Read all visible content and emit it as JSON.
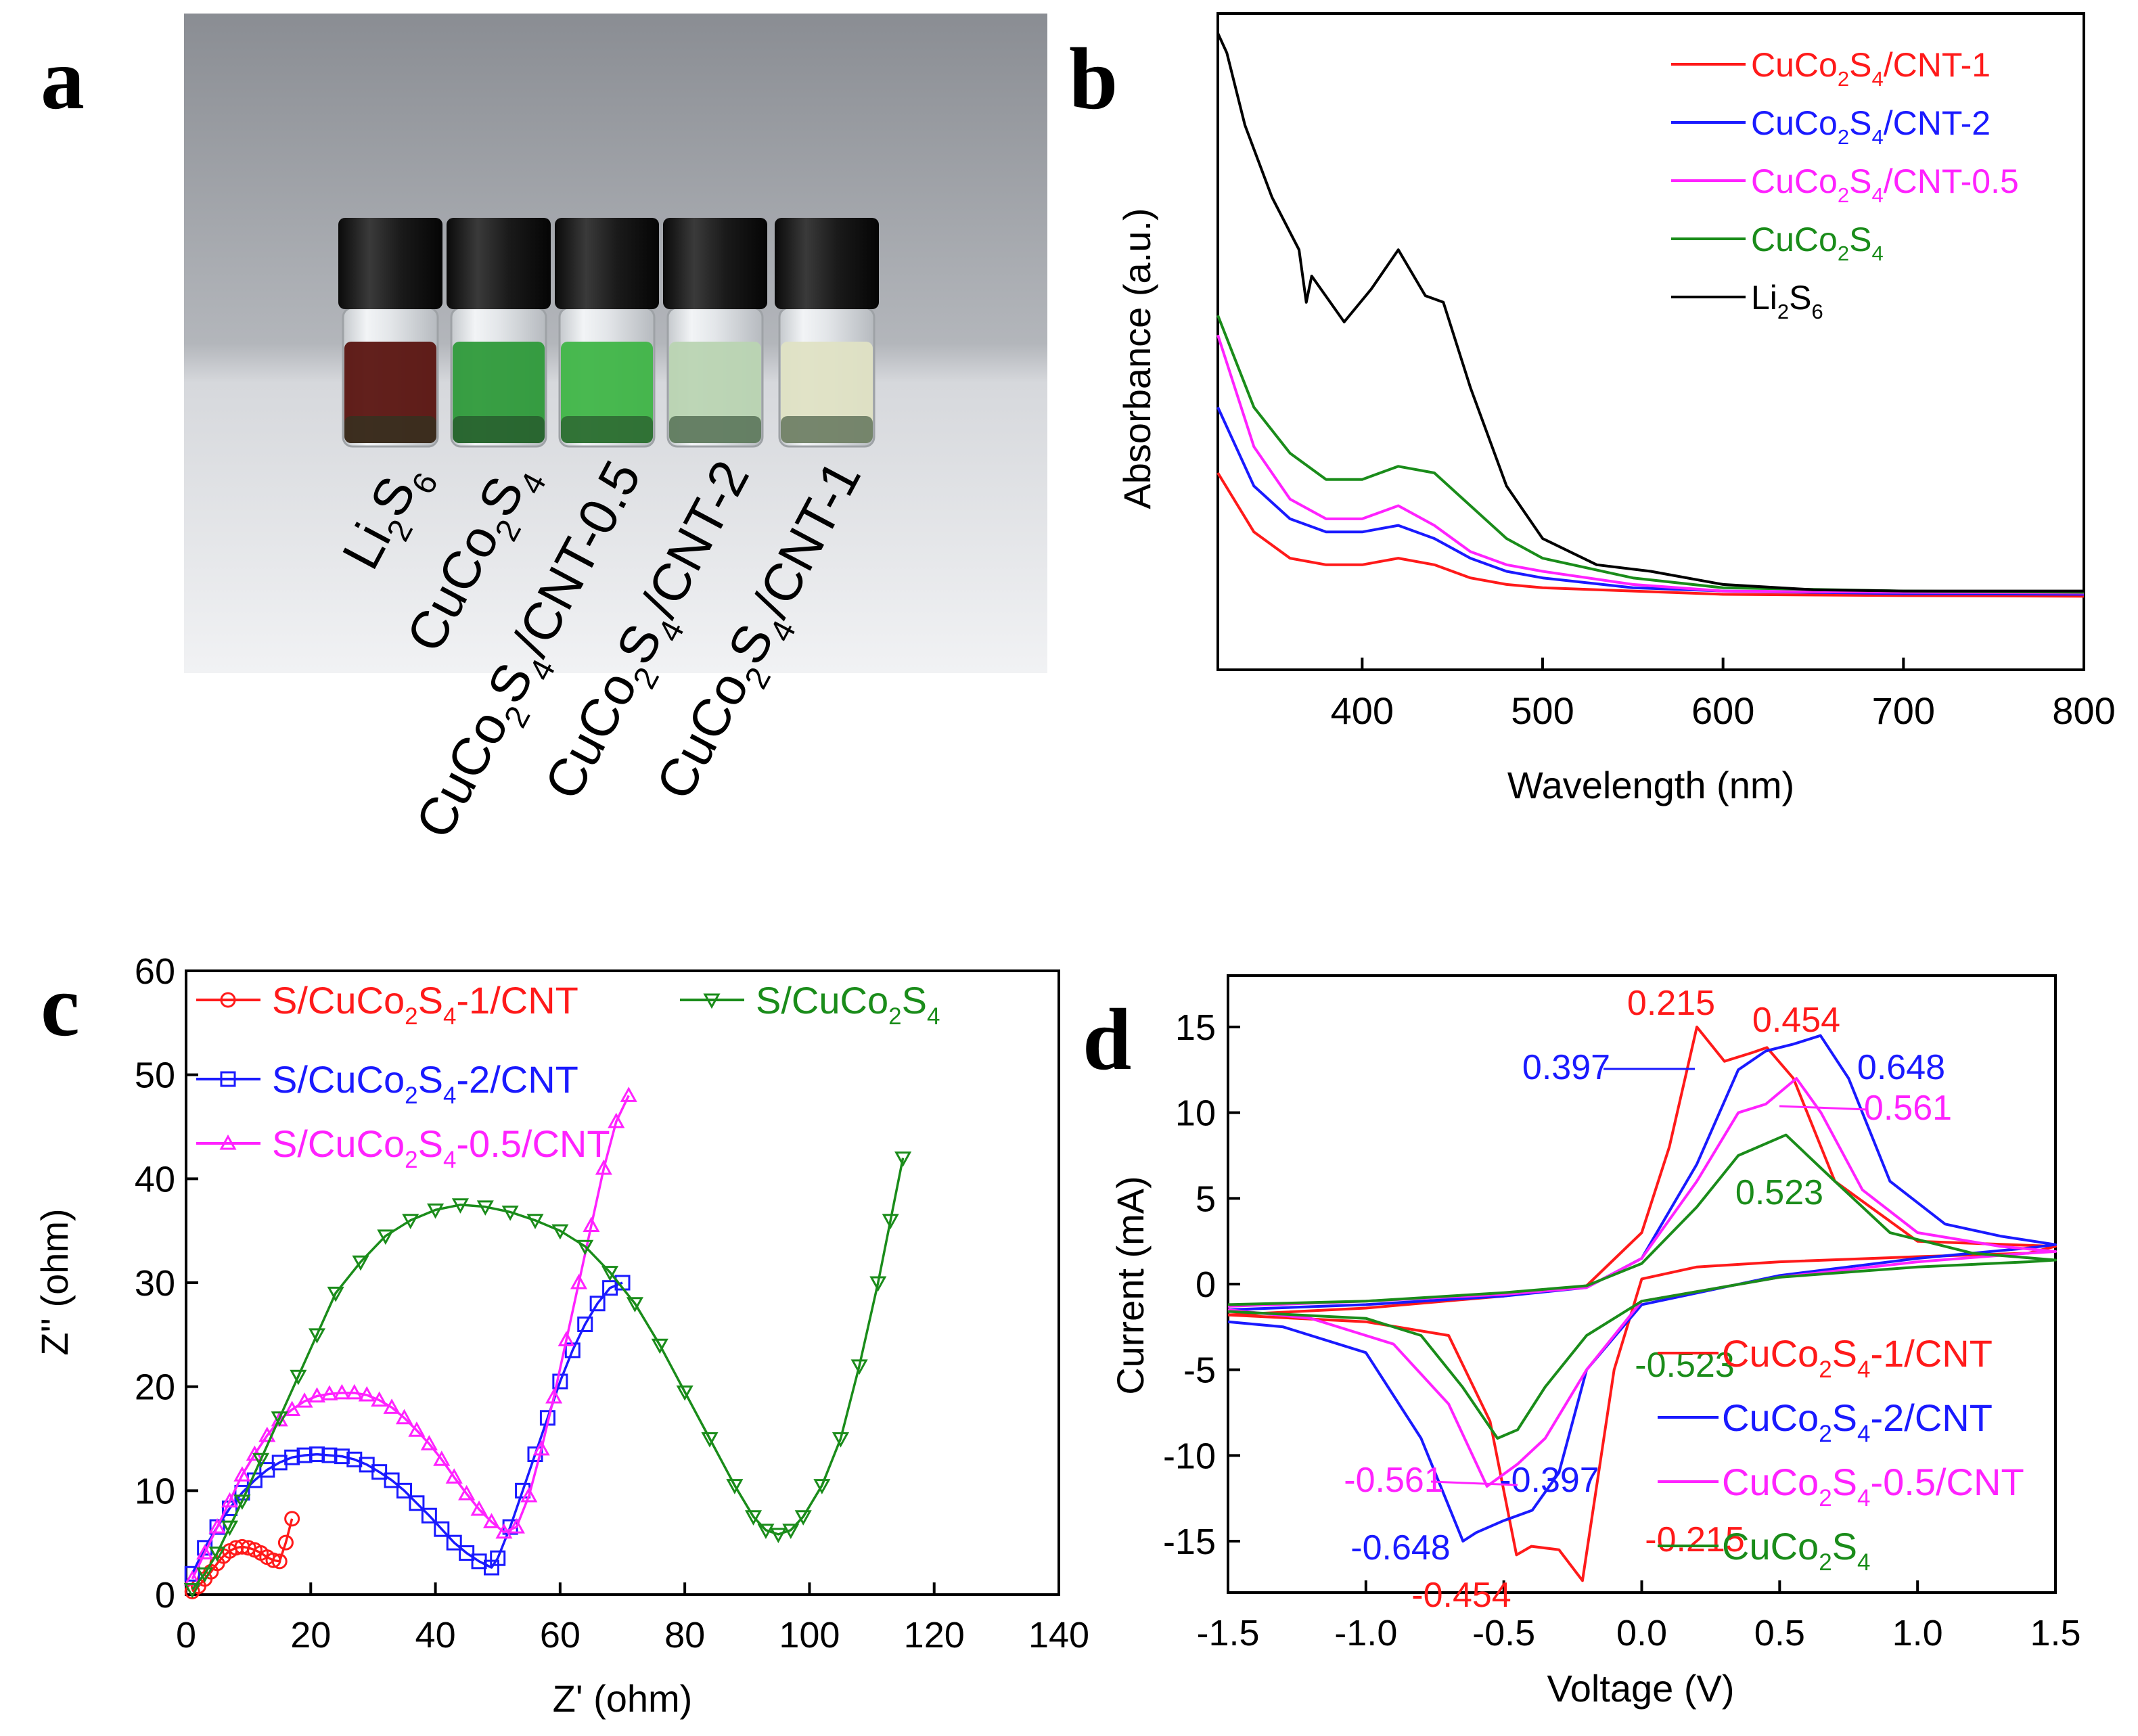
{
  "panels": {
    "a": {
      "letter": "a"
    },
    "b": {
      "letter": "b"
    },
    "c": {
      "letter": "c"
    },
    "d": {
      "letter": "d"
    }
  },
  "photo": {
    "vials": [
      {
        "label": "Li2S6",
        "color": "#5a1410"
      },
      {
        "label": "CuCo2S4",
        "color": "#2e9a3a"
      },
      {
        "label": "CuCo2S4/CNT-0.5",
        "color": "#3fb547"
      },
      {
        "label": "CuCo2S4/CNT-2",
        "color": "#b9d4b2"
      },
      {
        "label": "CuCo2S4/CNT-1",
        "color": "#dfe2c4"
      }
    ]
  },
  "colors": {
    "red": "#ff1a1a",
    "blue": "#1a1aff",
    "magenta": "#ff22ff",
    "green": "#1a8c1a",
    "black": "#000000"
  },
  "chart_data": [
    {
      "panel": "b",
      "type": "line",
      "xlabel": "Wavelength (nm)",
      "ylabel": "Absorbance (a.u.)",
      "xlim": [
        320,
        800
      ],
      "ylim": [
        0,
        100
      ],
      "xticks": [
        400,
        500,
        600,
        700,
        800
      ],
      "legend_position": "top-right",
      "series": [
        {
          "name": "CuCo2S4/CNT-1",
          "color": "#ff1a1a",
          "x": [
            320,
            340,
            360,
            380,
            400,
            420,
            440,
            460,
            480,
            500,
            550,
            600,
            700,
            800
          ],
          "y": [
            30,
            21,
            17,
            16,
            16,
            17,
            16,
            14,
            13,
            12.5,
            12,
            11.5,
            11.3,
            11.2
          ]
        },
        {
          "name": "CuCo2S4/CNT-2",
          "color": "#1a1aff",
          "x": [
            320,
            340,
            360,
            380,
            400,
            420,
            440,
            460,
            480,
            500,
            550,
            600,
            700,
            800
          ],
          "y": [
            40,
            28,
            23,
            21,
            21,
            22,
            20,
            17,
            15,
            14,
            12.5,
            12,
            11.6,
            11.5
          ]
        },
        {
          "name": "CuCo2S4/CNT-0.5",
          "color": "#ff22ff",
          "x": [
            320,
            340,
            360,
            380,
            400,
            420,
            440,
            460,
            480,
            500,
            550,
            600,
            700,
            800
          ],
          "y": [
            51,
            34,
            26,
            23,
            23,
            25,
            22,
            18,
            16,
            15,
            13,
            12,
            11.8,
            11.7
          ]
        },
        {
          "name": "CuCo2S4",
          "color": "#1a8c1a",
          "x": [
            320,
            340,
            360,
            380,
            400,
            420,
            440,
            460,
            480,
            500,
            550,
            600,
            700,
            800
          ],
          "y": [
            54,
            40,
            33,
            29,
            29,
            31,
            30,
            25,
            20,
            17,
            14,
            12.5,
            12,
            11.8
          ]
        },
        {
          "name": "Li2S6",
          "color": "#000000",
          "x": [
            320,
            325,
            335,
            350,
            365,
            369,
            372,
            390,
            405,
            420,
            435,
            445,
            460,
            480,
            500,
            530,
            560,
            600,
            650,
            700,
            800
          ],
          "y": [
            97,
            94,
            83,
            72,
            64,
            56,
            60,
            53,
            58,
            64,
            57,
            56,
            43,
            28,
            20,
            16,
            15,
            13,
            12.2,
            12,
            12
          ]
        }
      ]
    },
    {
      "panel": "c",
      "type": "scatter",
      "xlabel": "Z' (ohm)",
      "ylabel": "Z'' (ohm)",
      "xlim": [
        0,
        140
      ],
      "ylim": [
        0,
        60
      ],
      "xticks": [
        0,
        20,
        40,
        60,
        80,
        100,
        120,
        140
      ],
      "yticks": [
        0,
        10,
        20,
        30,
        40,
        50,
        60
      ],
      "legend_position": "top",
      "series": [
        {
          "name": "S/CuCo2S4-1/CNT",
          "color": "#ff1a1a",
          "marker": "circle",
          "x": [
            1,
            2,
            3,
            4,
            5,
            6,
            7,
            8,
            9,
            10,
            11,
            12,
            13,
            14,
            15,
            16,
            17
          ],
          "y": [
            0.3,
            0.8,
            1.5,
            2.2,
            3,
            3.7,
            4.2,
            4.5,
            4.6,
            4.5,
            4.3,
            4,
            3.6,
            3.3,
            3.2,
            5,
            7.3
          ]
        },
        {
          "name": "S/CuCo2S4-2/CNT",
          "color": "#1a1aff",
          "marker": "square",
          "x": [
            1,
            3,
            5,
            7,
            9,
            11,
            13,
            15,
            17,
            19,
            21,
            23,
            25,
            27,
            29,
            31,
            33,
            35,
            37,
            39,
            41,
            43,
            45,
            47,
            49,
            50,
            52,
            54,
            56,
            58,
            60,
            62,
            64,
            66,
            68,
            70
          ],
          "y": [
            2,
            4.5,
            6.5,
            8.3,
            9.8,
            11,
            12,
            12.7,
            13.2,
            13.4,
            13.5,
            13.4,
            13.3,
            13,
            12.5,
            11.8,
            11,
            10,
            8.8,
            7.6,
            6.3,
            5,
            4,
            3.2,
            2.6,
            3.5,
            6.5,
            10,
            13.5,
            17,
            20.5,
            23.5,
            26,
            28,
            29.5,
            30
          ]
        },
        {
          "name": "S/CuCo2S4-0.5/CNT",
          "color": "#ff22ff",
          "marker": "triangle-up",
          "x": [
            1,
            3,
            5,
            7,
            9,
            11,
            13,
            15,
            17,
            19,
            21,
            23,
            25,
            27,
            29,
            31,
            33,
            35,
            37,
            39,
            41,
            43,
            45,
            47,
            49,
            51,
            53,
            55,
            57,
            59,
            61,
            63,
            65,
            67,
            69,
            71
          ],
          "y": [
            1.5,
            4,
            6.5,
            9,
            11.5,
            13.5,
            15.3,
            16.8,
            17.8,
            18.6,
            19.1,
            19.3,
            19.4,
            19.4,
            19.2,
            18.7,
            18,
            17,
            15.8,
            14.5,
            13,
            11.3,
            9.7,
            8.2,
            7,
            6,
            6.5,
            9.5,
            14,
            19,
            24.5,
            30,
            35.5,
            41,
            45.5,
            48
          ]
        },
        {
          "name": "S/CuCo2S4",
          "color": "#1a8c1a",
          "marker": "triangle-down",
          "x": [
            1,
            3,
            5,
            7,
            9,
            12,
            15,
            18,
            21,
            24,
            28,
            32,
            36,
            40,
            44,
            48,
            52,
            56,
            60,
            64,
            68,
            72,
            76,
            80,
            84,
            88,
            91,
            93,
            95,
            97,
            99,
            102,
            105,
            108,
            111,
            113,
            115
          ],
          "y": [
            0.5,
            2,
            4,
            6.5,
            9,
            13,
            17,
            21,
            25,
            29,
            32,
            34.5,
            36,
            37,
            37.5,
            37.3,
            36.8,
            36,
            35,
            33.5,
            31,
            28,
            24,
            19.5,
            15,
            10.5,
            7.5,
            6.2,
            5.8,
            6.2,
            7.5,
            10.5,
            15,
            22,
            30,
            36,
            42
          ]
        }
      ]
    },
    {
      "panel": "d",
      "type": "line",
      "xlabel": "Voltage (V)",
      "ylabel": "Current (mA)",
      "xlim": [
        -1.5,
        1.5
      ],
      "ylim": [
        -18,
        18
      ],
      "xticks": [
        -1.5,
        -1.0,
        -0.5,
        0.0,
        0.5,
        1.0,
        1.5
      ],
      "yticks": [
        -15,
        -10,
        -5,
        0,
        5,
        10,
        15
      ],
      "legend_position": "bottom-right",
      "series": [
        {
          "name": "CuCo2S4-1/CNT",
          "color": "#ff1a1a",
          "x": [
            -1.5,
            -1.0,
            -0.5,
            -0.2,
            0,
            0.1,
            0.2,
            0.3,
            0.4,
            0.454,
            0.55,
            0.7,
            1.0,
            1.5,
            1.4,
            1.0,
            0.5,
            0.2,
            0.0,
            -0.1,
            -0.215,
            -0.3,
            -0.4,
            -0.454,
            -0.55,
            -0.7,
            -1.0,
            -1.5
          ],
          "y": [
            -1.8,
            -1.4,
            -0.7,
            -0.1,
            3,
            8,
            15,
            13,
            13.5,
            13.8,
            12,
            6,
            2.5,
            2.2,
            1.8,
            1.6,
            1.3,
            1.0,
            0.3,
            -5,
            -17.3,
            -15.5,
            -15.3,
            -15.8,
            -8,
            -3,
            -2.2,
            -1.8
          ]
        },
        {
          "name": "CuCo2S4-2/CNT",
          "color": "#1a1aff",
          "x": [
            -1.5,
            -1.0,
            -0.5,
            -0.2,
            0,
            0.2,
            0.35,
            0.45,
            0.55,
            0.648,
            0.75,
            0.9,
            1.1,
            1.3,
            1.5,
            1.4,
            1.0,
            0.5,
            0.0,
            -0.2,
            -0.3,
            -0.397,
            -0.5,
            -0.6,
            -0.648,
            -0.8,
            -1.0,
            -1.3,
            -1.5
          ],
          "y": [
            -1.5,
            -1.2,
            -0.7,
            -0.2,
            1.5,
            7,
            12.5,
            13.6,
            14,
            14.5,
            12,
            6,
            3.5,
            2.8,
            2.3,
            2.1,
            1.5,
            0.5,
            -1.2,
            -5,
            -11,
            -13.2,
            -13.8,
            -14.5,
            -15,
            -9,
            -4,
            -2.5,
            -2.2
          ]
        },
        {
          "name": "CuCo2S4-0.5/CNT",
          "color": "#ff22ff",
          "x": [
            -1.5,
            -1.0,
            -0.5,
            -0.2,
            0,
            0.2,
            0.35,
            0.45,
            0.561,
            0.65,
            0.8,
            1.0,
            1.3,
            1.5,
            1.4,
            1.0,
            0.5,
            0.0,
            -0.2,
            -0.35,
            -0.45,
            -0.561,
            -0.7,
            -0.9,
            -1.2,
            -1.5
          ],
          "y": [
            -1.3,
            -1.0,
            -0.6,
            -0.2,
            1.5,
            6,
            10,
            10.5,
            12,
            10,
            5.5,
            3,
            2.2,
            1.9,
            1.8,
            1.3,
            0.4,
            -1,
            -5,
            -9,
            -10.5,
            -11.8,
            -7,
            -3.5,
            -2,
            -1.5
          ]
        },
        {
          "name": "CuCo2S4",
          "color": "#1a8c1a",
          "x": [
            -1.5,
            -1.0,
            -0.5,
            -0.2,
            0,
            0.2,
            0.35,
            0.523,
            0.7,
            0.9,
            1.2,
            1.5,
            1.4,
            1.0,
            0.5,
            0.0,
            -0.2,
            -0.35,
            -0.45,
            -0.523,
            -0.65,
            -0.8,
            -1.0,
            -1.5
          ],
          "y": [
            -1.2,
            -1.0,
            -0.5,
            -0.1,
            1.2,
            4.5,
            7.5,
            8.7,
            6,
            3,
            1.8,
            1.4,
            1.3,
            1.0,
            0.4,
            -1,
            -3,
            -6,
            -8.5,
            -9,
            -6,
            -3,
            -2,
            -1.6
          ]
        }
      ],
      "annotations": [
        {
          "text": "0.215",
          "color": "#ff1a1a"
        },
        {
          "text": "0.454",
          "color": "#ff1a1a"
        },
        {
          "text": "0.397",
          "color": "#1a1aff"
        },
        {
          "text": "0.648",
          "color": "#1a1aff"
        },
        {
          "text": "0.561",
          "color": "#ff22ff"
        },
        {
          "text": "0.523",
          "color": "#1a8c1a"
        },
        {
          "text": "-0.523",
          "color": "#1a8c1a"
        },
        {
          "text": "-0.561",
          "color": "#ff22ff"
        },
        {
          "text": "-0.397",
          "color": "#1a1aff"
        },
        {
          "text": "-0.648",
          "color": "#1a1aff"
        },
        {
          "text": "-0.454",
          "color": "#ff1a1a"
        },
        {
          "text": "-0.215",
          "color": "#ff1a1a"
        }
      ]
    }
  ]
}
